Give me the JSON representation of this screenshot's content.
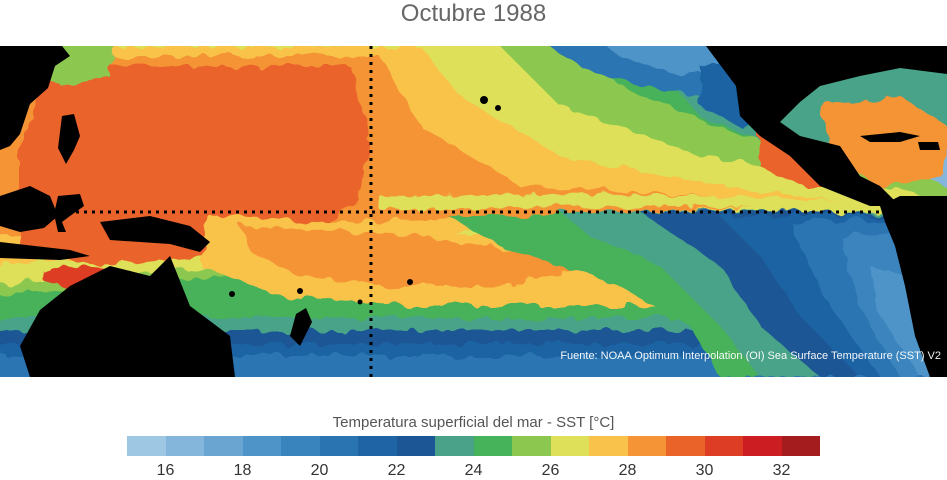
{
  "title": "Octubre 1988",
  "source": "Fuente: NOAA Optimum Interpolation (OI) Sea Surface Temperature (SST) V2",
  "legend": {
    "title": "Temperatura superficial del mar - SST  [°C]",
    "unit": "°C",
    "min": 15,
    "max": 33,
    "step": 1,
    "colors": [
      "#9ec7e4",
      "#84b6dc",
      "#6aa5d2",
      "#4f94c8",
      "#3a84be",
      "#2a74b2",
      "#1f64a4",
      "#1c5694",
      "#4aa388",
      "#46b25a",
      "#8cc850",
      "#dee05a",
      "#f9c24a",
      "#f59436",
      "#ea6329",
      "#dd3d24",
      "#cc1d23",
      "#a51c1f"
    ],
    "tick_labels": [
      "16",
      "18",
      "20",
      "22",
      "24",
      "26",
      "28",
      "30",
      "32"
    ]
  },
  "colors": {
    "land": "#000000",
    "guides": "#000000"
  },
  "map": {
    "equator_dotted": true,
    "dateline_dotted": true
  }
}
